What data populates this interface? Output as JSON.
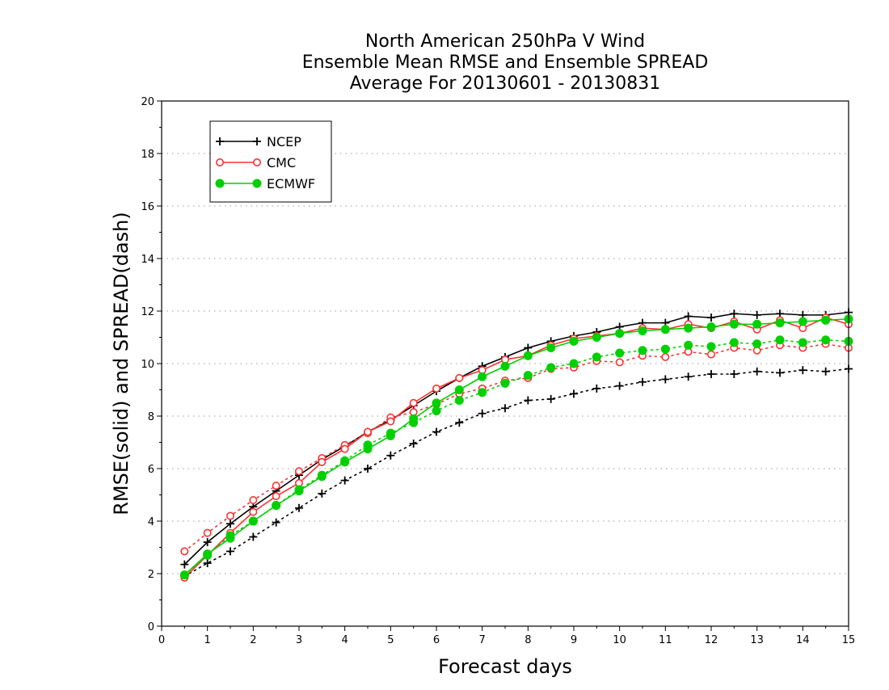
{
  "chart_data": {
    "type": "line",
    "title_lines": [
      "North American 250hPa V Wind",
      "Ensemble Mean RMSE and Ensemble SPREAD",
      "Average For 20130601 - 20130831"
    ],
    "xlabel": "Forecast days",
    "ylabel": "RMSE(solid) and SPREAD(dash)",
    "xlim": [
      0,
      15
    ],
    "ylim": [
      0,
      20
    ],
    "x_ticks": [
      0,
      1,
      2,
      3,
      4,
      5,
      6,
      7,
      8,
      9,
      10,
      11,
      12,
      13,
      14,
      15
    ],
    "y_ticks": [
      0,
      2,
      4,
      6,
      8,
      10,
      12,
      14,
      16,
      18,
      20
    ],
    "grid": "horizontal dotted at y ticks",
    "legend_position": "top-left",
    "x": [
      0.5,
      1,
      1.5,
      2,
      2.5,
      3,
      3.5,
      4,
      4.5,
      5,
      5.5,
      6,
      6.5,
      7,
      7.5,
      8,
      8.5,
      9,
      9.5,
      10,
      10.5,
      11,
      11.5,
      12,
      12.5,
      13,
      13.5,
      14,
      14.5,
      15
    ],
    "series": [
      {
        "name": "NCEP",
        "color": "#000000",
        "marker": "plus",
        "rmse": [
          2.35,
          3.2,
          3.9,
          4.55,
          5.15,
          5.75,
          6.35,
          6.85,
          7.4,
          7.85,
          8.4,
          8.95,
          9.45,
          9.9,
          10.25,
          10.6,
          10.85,
          11.05,
          11.2,
          11.4,
          11.55,
          11.55,
          11.8,
          11.75,
          11.9,
          11.85,
          11.9,
          11.85,
          11.85,
          11.95
        ],
        "spread": [
          1.9,
          2.4,
          2.85,
          3.4,
          3.95,
          4.5,
          5.05,
          5.55,
          6.0,
          6.5,
          6.95,
          7.4,
          7.75,
          8.1,
          8.3,
          8.6,
          8.65,
          8.85,
          9.05,
          9.15,
          9.3,
          9.4,
          9.5,
          9.6,
          9.6,
          9.7,
          9.65,
          9.75,
          9.7,
          9.8
        ]
      },
      {
        "name": "CMC",
        "color": "#ff3030",
        "marker": "open-circle",
        "rmse": [
          1.85,
          2.7,
          3.55,
          4.35,
          4.95,
          5.45,
          6.25,
          6.75,
          7.4,
          7.8,
          8.5,
          9.05,
          9.45,
          9.75,
          10.15,
          10.3,
          10.7,
          10.95,
          11.05,
          11.15,
          11.35,
          11.3,
          11.5,
          11.35,
          11.6,
          11.3,
          11.65,
          11.35,
          11.75,
          11.5
        ],
        "spread": [
          2.85,
          3.55,
          4.2,
          4.8,
          5.35,
          5.9,
          6.4,
          6.9,
          7.35,
          7.95,
          8.15,
          8.45,
          8.85,
          9.05,
          9.35,
          9.45,
          9.8,
          9.85,
          10.1,
          10.05,
          10.3,
          10.25,
          10.45,
          10.35,
          10.6,
          10.5,
          10.7,
          10.6,
          10.75,
          10.6
        ]
      },
      {
        "name": "ECMWF",
        "color": "#00d000",
        "marker": "filled-circle",
        "rmse": [
          1.95,
          2.75,
          3.35,
          4.0,
          4.6,
          5.15,
          5.7,
          6.25,
          6.75,
          7.25,
          7.9,
          8.5,
          9.0,
          9.5,
          9.9,
          10.3,
          10.6,
          10.85,
          11.0,
          11.15,
          11.25,
          11.3,
          11.35,
          11.4,
          11.5,
          11.5,
          11.55,
          11.6,
          11.65,
          11.7
        ],
        "spread": [
          1.95,
          2.7,
          3.45,
          4.0,
          4.6,
          5.2,
          5.75,
          6.3,
          6.9,
          7.35,
          7.75,
          8.2,
          8.6,
          8.9,
          9.25,
          9.55,
          9.85,
          10.0,
          10.25,
          10.4,
          10.5,
          10.55,
          10.7,
          10.65,
          10.8,
          10.75,
          10.9,
          10.8,
          10.9,
          10.85
        ]
      }
    ]
  }
}
